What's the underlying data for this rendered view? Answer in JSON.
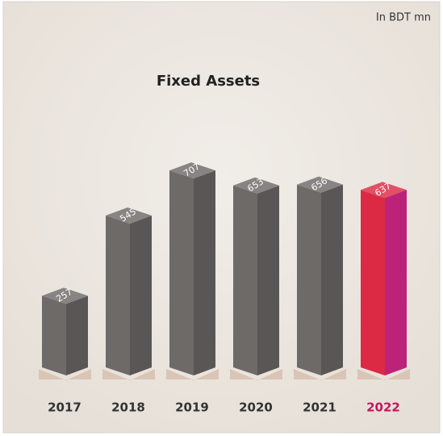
{
  "chart_data": {
    "type": "bar3d",
    "title": "Fixed Assets",
    "unit_note": "In BDT mn",
    "categories": [
      "2017",
      "2018",
      "2019",
      "2020",
      "2021",
      "2022"
    ],
    "values": [
      257,
      545,
      707,
      653,
      656,
      637
    ],
    "colors": [
      "#6e6a68",
      "#6e6a68",
      "#6e6a68",
      "#6e6a68",
      "#6e6a68",
      "#dc2a44"
    ],
    "label_colors": [
      "#333333",
      "#333333",
      "#333333",
      "#333333",
      "#333333",
      "#c2185b"
    ]
  }
}
